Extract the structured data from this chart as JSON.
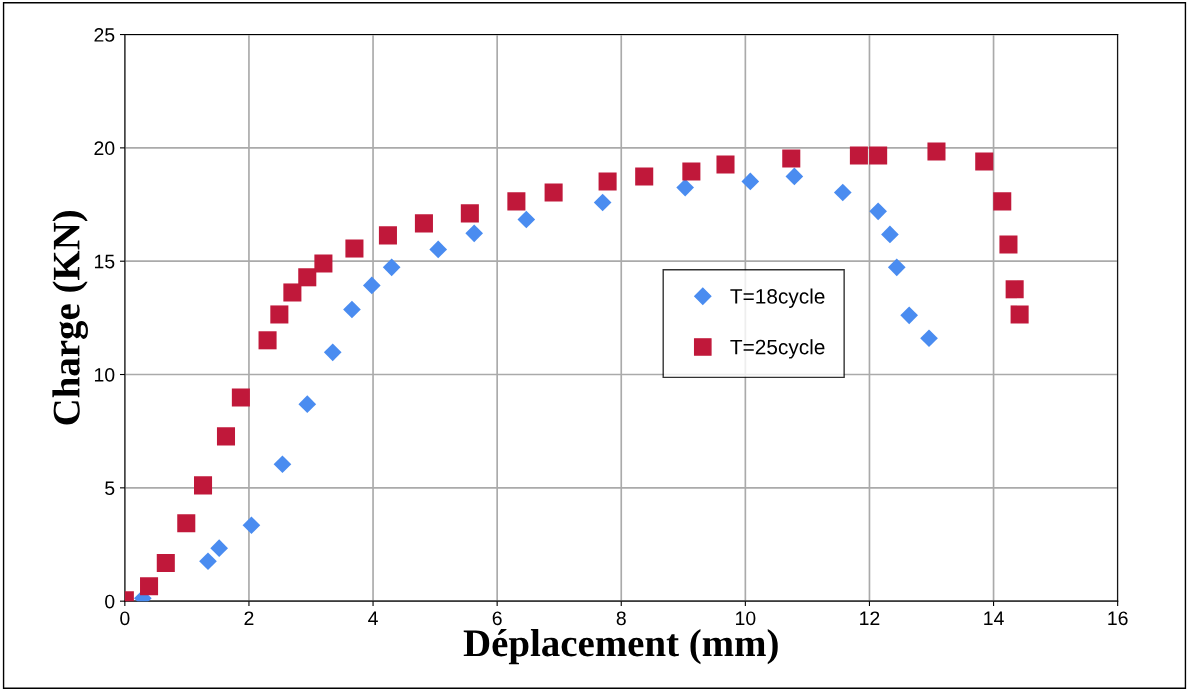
{
  "chart_data": {
    "type": "scatter",
    "xlabel": "Déplacement (mm)",
    "ylabel": "Charge (KN)",
    "xlim": [
      0,
      16
    ],
    "ylim": [
      0,
      25
    ],
    "xticks": [
      0,
      2,
      4,
      6,
      8,
      10,
      12,
      14,
      16
    ],
    "yticks": [
      0,
      5,
      10,
      15,
      20,
      25
    ],
    "grid": true,
    "legend": "right",
    "series": [
      {
        "name": "T=18cycle",
        "color": "#4a8cf0",
        "marker": "diamond",
        "x": [
          0.29,
          1.34,
          1.52,
          2.04,
          2.54,
          2.94,
          3.35,
          3.66,
          3.98,
          4.3,
          5.05,
          5.63,
          6.47,
          7.7,
          9.03,
          10.08,
          10.79,
          11.57,
          12.14,
          12.33,
          12.44,
          12.64,
          12.96
        ],
        "values": [
          0.13,
          1.76,
          2.34,
          3.35,
          6.04,
          8.69,
          10.98,
          12.87,
          13.93,
          14.73,
          15.52,
          16.23,
          16.84,
          17.59,
          18.25,
          18.52,
          18.74,
          18.03,
          17.2,
          16.18,
          14.73,
          12.61,
          11.6
        ]
      },
      {
        "name": "T=25cycle",
        "color": "#c0183a",
        "marker": "square",
        "x": [
          0,
          0.39,
          0.66,
          0.99,
          1.26,
          1.63,
          1.87,
          2.3,
          2.49,
          2.7,
          2.94,
          3.2,
          3.7,
          4.24,
          4.82,
          5.56,
          6.31,
          6.91,
          7.78,
          8.37,
          9.13,
          9.68,
          10.74,
          11.83,
          12.14,
          13.08,
          13.85,
          14.14,
          14.24,
          14.34,
          14.42
        ],
        "values": [
          0.04,
          0.66,
          1.68,
          3.44,
          5.11,
          7.27,
          8.99,
          11.51,
          12.65,
          13.62,
          14.29,
          14.9,
          15.56,
          16.14,
          16.67,
          17.11,
          17.64,
          18.03,
          18.52,
          18.74,
          18.96,
          19.27,
          19.53,
          19.66,
          19.66,
          19.84,
          19.4,
          17.64,
          15.74,
          13.76,
          12.65
        ]
      }
    ]
  }
}
